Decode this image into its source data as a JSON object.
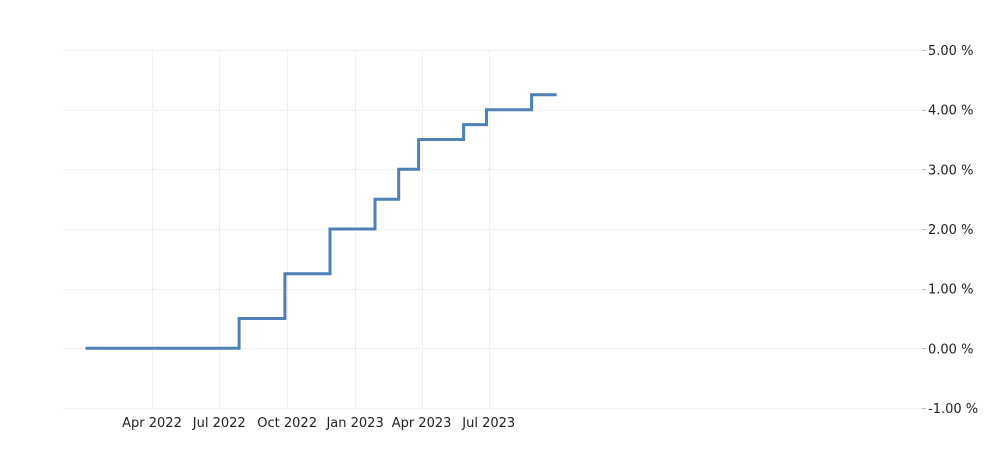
{
  "chart_data": {
    "type": "line",
    "step": true,
    "title": "",
    "xlabel": "",
    "ylabel": "",
    "ylim": [
      -1.0,
      5.0
    ],
    "y_ticks": [
      {
        "value": 5.0,
        "label": "5.00 %"
      },
      {
        "value": 4.0,
        "label": "4.00 %"
      },
      {
        "value": 3.0,
        "label": "3.00 %"
      },
      {
        "value": 2.0,
        "label": "2.00 %"
      },
      {
        "value": 1.0,
        "label": "1.00 %"
      },
      {
        "value": 0.0,
        "label": "0.00 %"
      },
      {
        "value": -1.0,
        "label": "-1.00 %"
      }
    ],
    "x_range": [
      "2022-01-01",
      "2023-10-01"
    ],
    "x_ticks": [
      {
        "date": "2022-04-01",
        "label": "Apr 2022"
      },
      {
        "date": "2022-07-01",
        "label": "Jul 2022"
      },
      {
        "date": "2022-10-01",
        "label": "Oct 2022"
      },
      {
        "date": "2023-01-01",
        "label": "Jan 2023"
      },
      {
        "date": "2023-04-01",
        "label": "Apr 2023"
      },
      {
        "date": "2023-07-01",
        "label": "Jul 2023"
      }
    ],
    "grid": true,
    "y_axis_position": "right",
    "line_color": "#4f81b8",
    "points": [
      {
        "x": "2022-01-01",
        "y": 0.0
      },
      {
        "x": "2022-07-28",
        "y": 0.5
      },
      {
        "x": "2022-09-28",
        "y": 1.25
      },
      {
        "x": "2022-11-28",
        "y": 2.0
      },
      {
        "x": "2023-01-28",
        "y": 2.5
      },
      {
        "x": "2023-03-01",
        "y": 3.0
      },
      {
        "x": "2023-03-28",
        "y": 3.5
      },
      {
        "x": "2023-05-28",
        "y": 3.75
      },
      {
        "x": "2023-06-28",
        "y": 4.0
      },
      {
        "x": "2023-08-28",
        "y": 4.25
      },
      {
        "x": "2023-10-01",
        "y": 4.25
      }
    ]
  }
}
